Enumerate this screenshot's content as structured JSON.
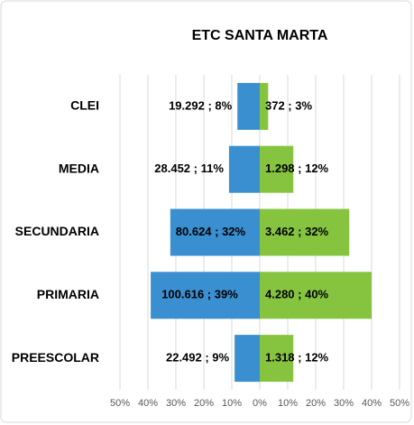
{
  "chart_data": {
    "type": "butterfly",
    "title": "ETC SANTA MARTA",
    "categories": [
      "CLEI",
      "MEDIA",
      "SECUNDARIA",
      "PRIMARIA",
      "PREESCOLAR"
    ],
    "series": [
      {
        "color": "#3a8fd0",
        "values": [
          -8,
          -11,
          -32,
          -39,
          -9
        ],
        "value_labels": [
          "19.292 ; 8%",
          "28.452 ; 11%",
          "80.624 ; 32%",
          "100.616 ; 39%",
          "22.492 ; 9%"
        ]
      },
      {
        "color": "#86c440",
        "values": [
          3,
          12,
          32,
          40,
          12
        ],
        "value_labels": [
          "372 ; 3%",
          "1.298 ; 12%",
          "3.462 ; 32%",
          "4.280 ; 40%",
          "1.318 ; 12%"
        ]
      }
    ],
    "xlim": [
      -50,
      50
    ],
    "xticks": [
      {
        "value": -50,
        "label": "50%"
      },
      {
        "value": -40,
        "label": "40%"
      },
      {
        "value": -30,
        "label": "30%"
      },
      {
        "value": -20,
        "label": "20%"
      },
      {
        "value": -10,
        "label": "10%"
      },
      {
        "value": 0,
        "label": "0%"
      },
      {
        "value": 10,
        "label": "10%"
      },
      {
        "value": 20,
        "label": "20%"
      },
      {
        "value": 30,
        "label": "30%"
      },
      {
        "value": 40,
        "label": "40%"
      },
      {
        "value": 50,
        "label": "50%"
      }
    ],
    "grid": true
  }
}
